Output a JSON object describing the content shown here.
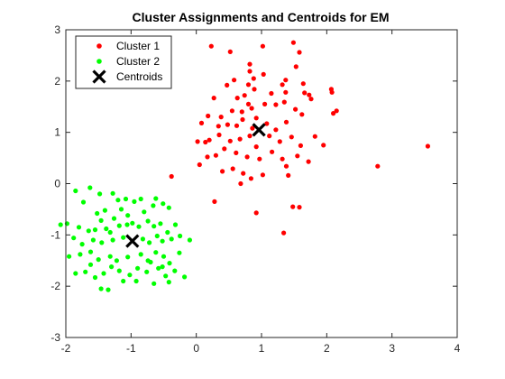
{
  "chart_data": {
    "type": "scatter",
    "title": "Cluster Assignments and Centroids for EM",
    "xlabel": "",
    "ylabel": "",
    "xlim": [
      -2,
      4
    ],
    "ylim": [
      -3,
      3
    ],
    "xticks": [
      -2,
      -1,
      0,
      1,
      2,
      3,
      4
    ],
    "yticks": [
      -3,
      -2,
      -1,
      0,
      1,
      2,
      3
    ],
    "xtick_labels": [
      "-2",
      "-1",
      "0",
      "1",
      "2",
      "3",
      "4"
    ],
    "ytick_labels": [
      "-3",
      "-2",
      "-1",
      "0",
      "1",
      "2",
      "3"
    ],
    "grid": false,
    "legend_position": "top-left",
    "series": [
      {
        "name": "Cluster 1",
        "color": "#ff0000",
        "marker": "dot",
        "points": [
          [
            0.23,
            2.68
          ],
          [
            0.52,
            2.57
          ],
          [
            0.82,
            2.33
          ],
          [
            1.02,
            2.68
          ],
          [
            1.37,
            2.02
          ],
          [
            1.49,
            2.75
          ],
          [
            1.58,
            2.56
          ],
          [
            0.58,
            2.02
          ],
          [
            0.82,
            2.19
          ],
          [
            0.88,
            2.05
          ],
          [
            1.03,
            2.13
          ],
          [
            1.32,
            1.93
          ],
          [
            1.53,
            2.28
          ],
          [
            1.64,
            1.95
          ],
          [
            0.27,
            1.67
          ],
          [
            0.47,
            1.92
          ],
          [
            0.63,
            1.67
          ],
          [
            0.74,
            1.72
          ],
          [
            0.89,
            1.84
          ],
          [
            1.15,
            1.76
          ],
          [
            1.37,
            1.78
          ],
          [
            1.66,
            1.77
          ],
          [
            0.38,
            1.3
          ],
          [
            0.55,
            1.42
          ],
          [
            0.7,
            1.4
          ],
          [
            0.8,
            1.55
          ],
          [
            0.85,
            1.47
          ],
          [
            0.92,
            1.28
          ],
          [
            1.05,
            1.55
          ],
          [
            1.22,
            1.54
          ],
          [
            1.35,
            1.59
          ],
          [
            1.52,
            1.45
          ],
          [
            1.73,
            1.73
          ],
          [
            0.08,
            1.18
          ],
          [
            0.18,
            1.32
          ],
          [
            0.34,
            1.12
          ],
          [
            0.48,
            1.15
          ],
          [
            0.62,
            1.13
          ],
          [
            0.71,
            1.25
          ],
          [
            0.86,
            1.08
          ],
          [
            1.08,
            1.17
          ],
          [
            1.22,
            1.05
          ],
          [
            1.38,
            1.2
          ],
          [
            1.62,
            1.35
          ],
          [
            1.76,
            1.65
          ],
          [
            0.02,
            0.82
          ],
          [
            0.2,
            0.85
          ],
          [
            0.35,
            0.95
          ],
          [
            0.52,
            0.83
          ],
          [
            0.67,
            0.87
          ],
          [
            0.82,
            0.93
          ],
          [
            0.92,
            0.72
          ],
          [
            1.12,
            0.93
          ],
          [
            1.28,
            0.82
          ],
          [
            1.46,
            0.91
          ],
          [
            1.6,
            0.74
          ],
          [
            1.82,
            0.92
          ],
          [
            0.17,
            0.52
          ],
          [
            0.3,
            0.55
          ],
          [
            0.43,
            0.68
          ],
          [
            0.61,
            0.6
          ],
          [
            0.78,
            0.52
          ],
          [
            0.97,
            0.48
          ],
          [
            1.16,
            0.62
          ],
          [
            1.32,
            0.48
          ],
          [
            1.55,
            0.54
          ],
          [
            1.72,
            0.43
          ],
          [
            0.4,
            0.24
          ],
          [
            0.56,
            0.29
          ],
          [
            0.72,
            0.2
          ],
          [
            0.84,
            0.1
          ],
          [
            1.02,
            0.17
          ],
          [
            1.41,
            0.16
          ],
          [
            0.68,
            0.0
          ],
          [
            0.92,
            -0.57
          ],
          [
            1.48,
            -0.45
          ],
          [
            1.58,
            -0.46
          ],
          [
            1.34,
            -0.96
          ],
          [
            -0.38,
            0.14
          ],
          [
            0.28,
            -0.35
          ],
          [
            0.05,
            0.37
          ],
          [
            1.95,
            0.75
          ],
          [
            2.07,
            1.84
          ],
          [
            2.08,
            1.78
          ],
          [
            2.15,
            1.42
          ],
          [
            2.1,
            1.37
          ],
          [
            1.38,
            0.34
          ],
          [
            0.14,
            0.81
          ],
          [
            2.78,
            0.34
          ],
          [
            3.55,
            0.73
          ],
          [
            0.8,
            1.93
          ]
        ]
      },
      {
        "name": "Cluster 2",
        "color": "#00ff00",
        "marker": "dot",
        "points": [
          [
            -1.85,
            -0.14
          ],
          [
            -1.63,
            -0.08
          ],
          [
            -1.73,
            -0.36
          ],
          [
            -1.48,
            -0.2
          ],
          [
            -1.28,
            -0.19
          ],
          [
            -1.2,
            -0.32
          ],
          [
            -1.52,
            -0.58
          ],
          [
            -1.46,
            -0.72
          ],
          [
            -1.4,
            -0.52
          ],
          [
            -1.26,
            -0.68
          ],
          [
            -1.15,
            -0.5
          ],
          [
            -1.08,
            -0.3
          ],
          [
            -0.95,
            -0.35
          ],
          [
            -0.85,
            -0.3
          ],
          [
            -0.66,
            -0.43
          ],
          [
            -0.62,
            -0.29
          ],
          [
            -0.51,
            -0.39
          ],
          [
            -0.42,
            -0.47
          ],
          [
            -1.98,
            -0.78
          ],
          [
            -1.8,
            -0.85
          ],
          [
            -1.65,
            -0.92
          ],
          [
            -1.55,
            -0.9
          ],
          [
            -1.38,
            -0.88
          ],
          [
            -1.32,
            -0.95
          ],
          [
            -1.18,
            -0.82
          ],
          [
            -1.06,
            -0.8
          ],
          [
            -0.98,
            -0.77
          ],
          [
            -0.88,
            -0.84
          ],
          [
            -0.74,
            -0.73
          ],
          [
            -0.65,
            -0.83
          ],
          [
            -0.55,
            -0.78
          ],
          [
            -0.44,
            -0.95
          ],
          [
            -0.32,
            -0.8
          ],
          [
            -0.25,
            -1.02
          ],
          [
            -1.88,
            -1.06
          ],
          [
            -1.75,
            -1.18
          ],
          [
            -1.58,
            -1.1
          ],
          [
            -1.45,
            -1.15
          ],
          [
            -1.28,
            -1.1
          ],
          [
            -1.12,
            -1.05
          ],
          [
            -0.82,
            -1.08
          ],
          [
            -0.72,
            -1.15
          ],
          [
            -0.6,
            -1.02
          ],
          [
            -0.52,
            -1.12
          ],
          [
            -0.38,
            -1.08
          ],
          [
            -0.1,
            -1.1
          ],
          [
            -1.95,
            -1.42
          ],
          [
            -1.78,
            -1.38
          ],
          [
            -1.62,
            -1.33
          ],
          [
            -1.5,
            -1.48
          ],
          [
            -1.32,
            -1.42
          ],
          [
            -1.22,
            -1.5
          ],
          [
            -1.05,
            -1.43
          ],
          [
            -0.85,
            -1.38
          ],
          [
            -0.74,
            -1.5
          ],
          [
            -0.62,
            -1.34
          ],
          [
            -0.5,
            -1.42
          ],
          [
            -0.41,
            -1.55
          ],
          [
            -0.26,
            -1.35
          ],
          [
            -1.85,
            -1.75
          ],
          [
            -1.7,
            -1.72
          ],
          [
            -1.55,
            -1.83
          ],
          [
            -1.42,
            -1.75
          ],
          [
            -1.3,
            -1.62
          ],
          [
            -1.18,
            -1.7
          ],
          [
            -1.02,
            -1.78
          ],
          [
            -0.9,
            -1.65
          ],
          [
            -0.76,
            -1.72
          ],
          [
            -0.58,
            -1.65
          ],
          [
            -0.47,
            -1.8
          ],
          [
            -0.33,
            -1.7
          ],
          [
            -0.18,
            -1.82
          ],
          [
            -1.46,
            -2.05
          ],
          [
            -1.35,
            -2.07
          ],
          [
            -1.12,
            -1.9
          ],
          [
            -0.92,
            -1.9
          ],
          [
            -0.65,
            -1.95
          ],
          [
            -0.42,
            -1.92
          ],
          [
            -0.7,
            -1.53
          ],
          [
            -2.08,
            -0.8
          ],
          [
            -0.52,
            -1.62
          ],
          [
            -1.62,
            -1.58
          ],
          [
            -1.05,
            -0.62
          ],
          [
            -0.8,
            -0.55
          ]
        ]
      },
      {
        "name": "Centroids",
        "color": "#000000",
        "marker": "x",
        "points": [
          [
            0.96,
            1.05
          ],
          [
            -0.98,
            -1.12
          ]
        ]
      }
    ]
  }
}
